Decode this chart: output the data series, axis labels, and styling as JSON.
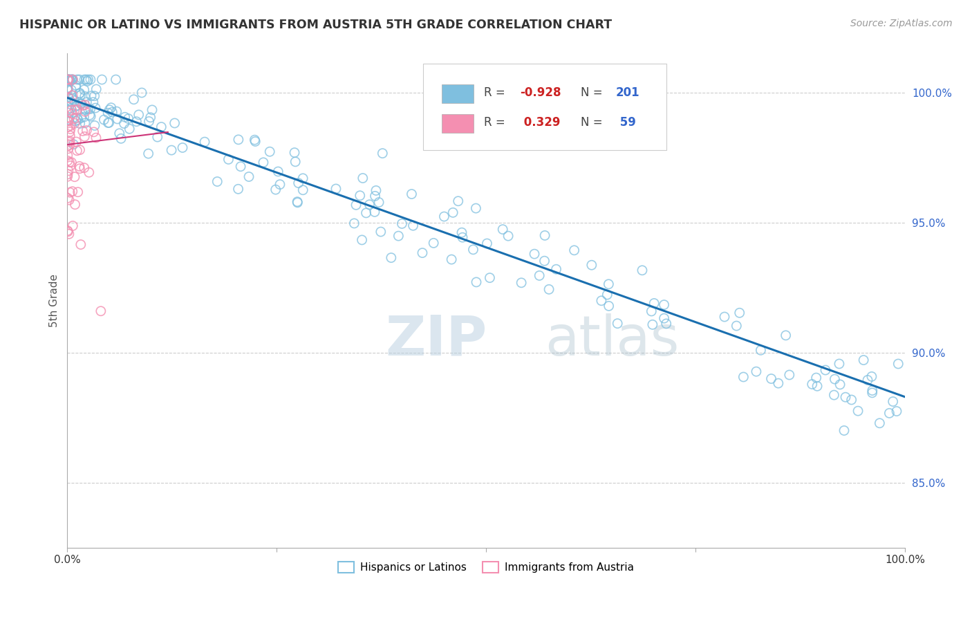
{
  "title": "HISPANIC OR LATINO VS IMMIGRANTS FROM AUSTRIA 5TH GRADE CORRELATION CHART",
  "source": "Source: ZipAtlas.com",
  "ylabel": "5th Grade",
  "xlim": [
    0.0,
    1.0
  ],
  "ylim": [
    0.825,
    1.015
  ],
  "ytick_positions": [
    0.85,
    0.9,
    0.95,
    1.0
  ],
  "ytick_labels": [
    "85.0%",
    "90.0%",
    "95.0%",
    "100.0%"
  ],
  "xtick_positions": [
    0.0,
    0.25,
    0.5,
    0.75,
    1.0
  ],
  "xtick_labels": [
    "0.0%",
    "",
    "",
    "",
    "100.0%"
  ],
  "blue_R": -0.928,
  "blue_N": 201,
  "pink_R": 0.329,
  "pink_N": 59,
  "blue_color": "#7fbfdf",
  "pink_color": "#f48fb1",
  "blue_line_color": "#1a6faf",
  "pink_line_color": "#cc3377",
  "legend_blue_label": "Hispanics or Latinos",
  "legend_pink_label": "Immigrants from Austria",
  "watermark_zip": "ZIP",
  "watermark_atlas": "atlas",
  "grid_color": "#cccccc",
  "background_color": "#ffffff",
  "title_color": "#333333",
  "blue_slope": -0.115,
  "blue_intercept": 0.998,
  "pink_slope": 0.04,
  "pink_intercept": 0.98
}
